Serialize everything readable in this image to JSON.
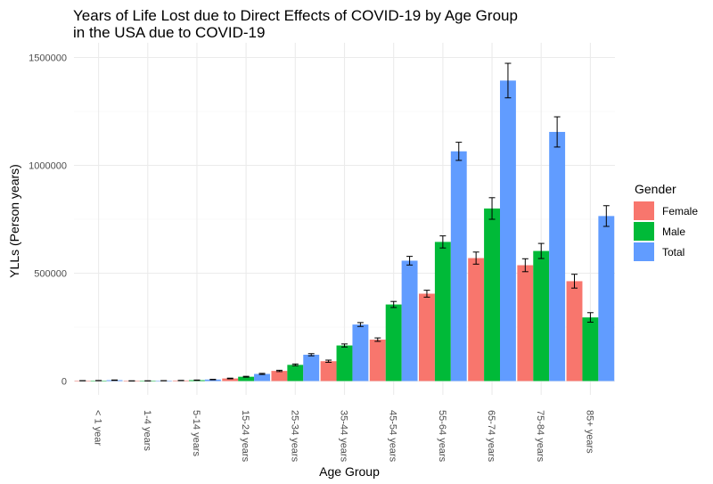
{
  "chart_data": {
    "type": "bar",
    "title_line1": "Years of Life Lost due to Direct Effects of COVID-19 by Age Group",
    "title_line2": "in the USA due to COVID-19",
    "xlabel": "Age Group",
    "ylabel": "YLLs (Person years)",
    "ylim": [
      0,
      1500000
    ],
    "yticks": [
      0,
      500000,
      1000000,
      1500000
    ],
    "ytick_labels": [
      "0",
      "500000",
      "1000000",
      "1500000"
    ],
    "grid": true,
    "legend_title": "Gender",
    "legend_position": "right",
    "categories": [
      "< 1 year",
      "1-4 years",
      "5-14 years",
      "15-24 years",
      "25-34 years",
      "35-44 years",
      "45-54 years",
      "55-64 years",
      "65-74 years",
      "75-84 years",
      "85+ years"
    ],
    "series": [
      {
        "name": "Female",
        "color": "#F8766D",
        "values": [
          1500,
          700,
          2500,
          12000,
          47000,
          92000,
          192000,
          405000,
          570000,
          537000,
          463000
        ],
        "error": [
          500,
          300,
          600,
          1500,
          3000,
          5000,
          8000,
          16000,
          28000,
          30000,
          32000
        ]
      },
      {
        "name": "Male",
        "color": "#00BA38",
        "values": [
          2000,
          800,
          4000,
          20000,
          75000,
          165000,
          355000,
          645000,
          800000,
          603000,
          295000
        ],
        "error": [
          600,
          300,
          800,
          2000,
          4000,
          7000,
          14000,
          28000,
          50000,
          35000,
          22000
        ]
      },
      {
        "name": "Total",
        "color": "#619CFF",
        "values": [
          4000,
          1500,
          7000,
          33000,
          122000,
          262000,
          558000,
          1065000,
          1393000,
          1155000,
          765000
        ],
        "error": [
          1000,
          400,
          1000,
          2500,
          5000,
          9000,
          20000,
          42000,
          80000,
          70000,
          48000
        ]
      }
    ]
  }
}
